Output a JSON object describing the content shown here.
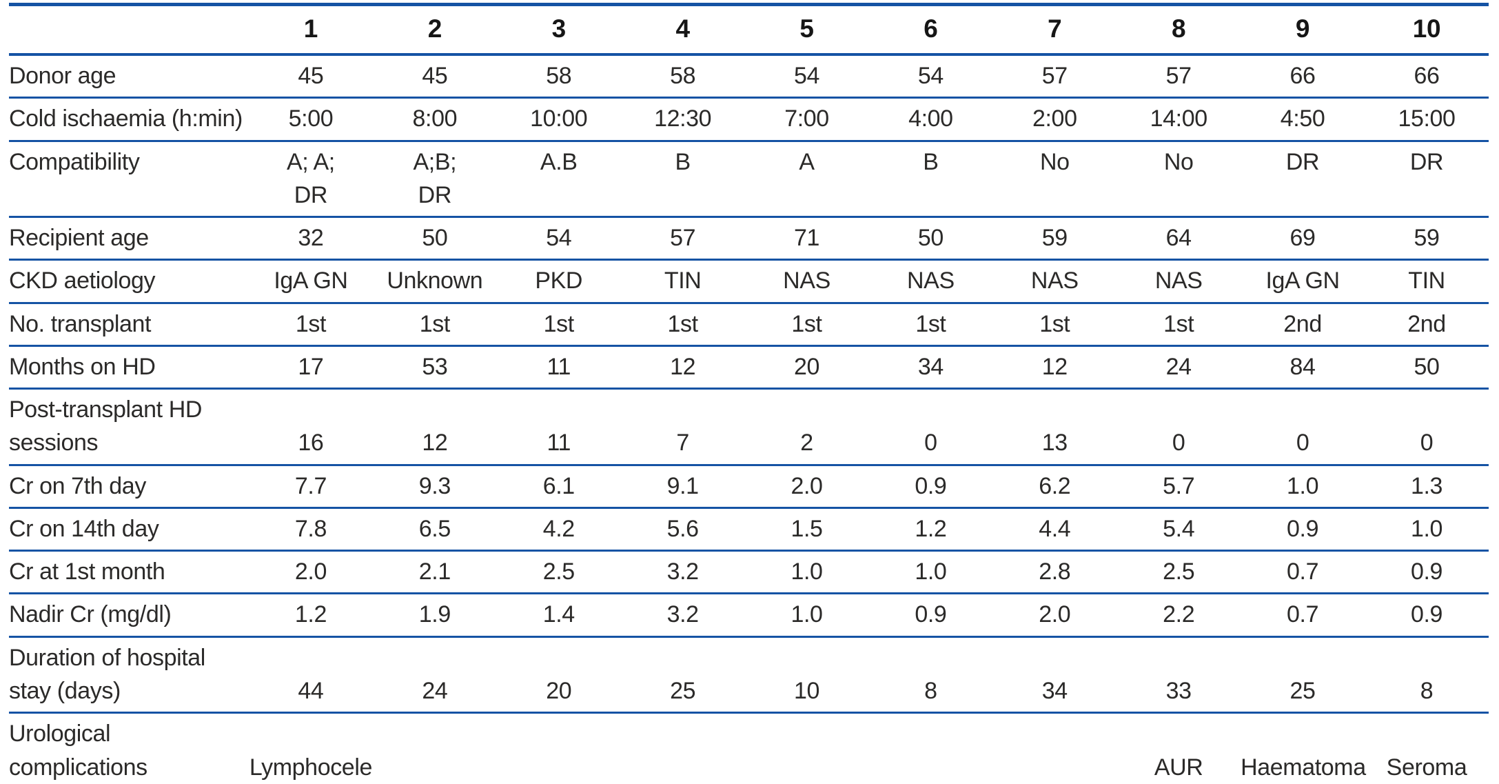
{
  "colors": {
    "rule_blue": "#1553a4",
    "body_text": "#2b2a29",
    "header_text": "#161616"
  },
  "table": {
    "corner_label": "",
    "column_headers": [
      "1",
      "2",
      "3",
      "4",
      "5",
      "6",
      "7",
      "8",
      "9",
      "10"
    ],
    "rows": [
      {
        "label": "Donor age",
        "values": [
          "45",
          "45",
          "58",
          "58",
          "54",
          "54",
          "57",
          "57",
          "66",
          "66"
        ]
      },
      {
        "label": "Cold ischaemia (h:min)",
        "values": [
          "5:00",
          "8:00",
          "10:00",
          "12:30",
          "7:00",
          "4:00",
          "2:00",
          "14:00",
          "4:50",
          "15:00"
        ]
      },
      {
        "label": "Compatibility",
        "valign": "top",
        "values": [
          "A; A;\nDR",
          "A;B;\nDR",
          "A.B",
          "B",
          "A",
          "B",
          "No",
          "No",
          "DR",
          "DR"
        ]
      },
      {
        "label": "Recipient age",
        "values": [
          "32",
          "50",
          "54",
          "57",
          "71",
          "50",
          "59",
          "64",
          "69",
          "59"
        ]
      },
      {
        "label": "CKD aetiology",
        "values": [
          "IgA GN",
          "Unknown",
          "PKD",
          "TIN",
          "NAS",
          "NAS",
          "NAS",
          "NAS",
          "IgA GN",
          "TIN"
        ]
      },
      {
        "label": "No. transplant",
        "values": [
          "1st",
          "1st",
          "1st",
          "1st",
          "1st",
          "1st",
          "1st",
          "1st",
          "2nd",
          "2nd"
        ]
      },
      {
        "label": "Months on HD",
        "values": [
          "17",
          "53",
          "11",
          "12",
          "20",
          "34",
          "12",
          "24",
          "84",
          "50"
        ]
      },
      {
        "label": "Post-transplant HD\nsessions",
        "valign": "bottom",
        "values": [
          "16",
          "12",
          "11",
          "7",
          "2",
          "0",
          "13",
          "0",
          "0",
          "0"
        ]
      },
      {
        "label": "Cr on 7th day",
        "values": [
          "7.7",
          "9.3",
          "6.1",
          "9.1",
          "2.0",
          "0.9",
          "6.2",
          "5.7",
          "1.0",
          "1.3"
        ]
      },
      {
        "label": "Cr on 14th day",
        "values": [
          "7.8",
          "6.5",
          "4.2",
          "5.6",
          "1.5",
          "1.2",
          "4.4",
          "5.4",
          "0.9",
          "1.0"
        ]
      },
      {
        "label": "Cr at 1st month",
        "values": [
          "2.0",
          "2.1",
          "2.5",
          "3.2",
          "1.0",
          "1.0",
          "2.8",
          "2.5",
          "0.7",
          "0.9"
        ]
      },
      {
        "label": "Nadir Cr (mg/dl)",
        "values": [
          "1.2",
          "1.9",
          "1.4",
          "3.2",
          "1.0",
          "0.9",
          "2.0",
          "2.2",
          "0.7",
          "0.9"
        ]
      },
      {
        "label": "Duration of hospital\nstay (days)",
        "valign": "bottom",
        "values": [
          "44",
          "24",
          "20",
          "25",
          "10",
          "8",
          "34",
          "33",
          "25",
          "8"
        ]
      },
      {
        "label": "Urological\ncomplications",
        "valign": "bottom",
        "values": [
          "Lymphocele",
          "",
          "",
          "",
          "",
          "",
          "",
          "AUR",
          "Haematoma",
          "Seroma"
        ]
      }
    ]
  }
}
